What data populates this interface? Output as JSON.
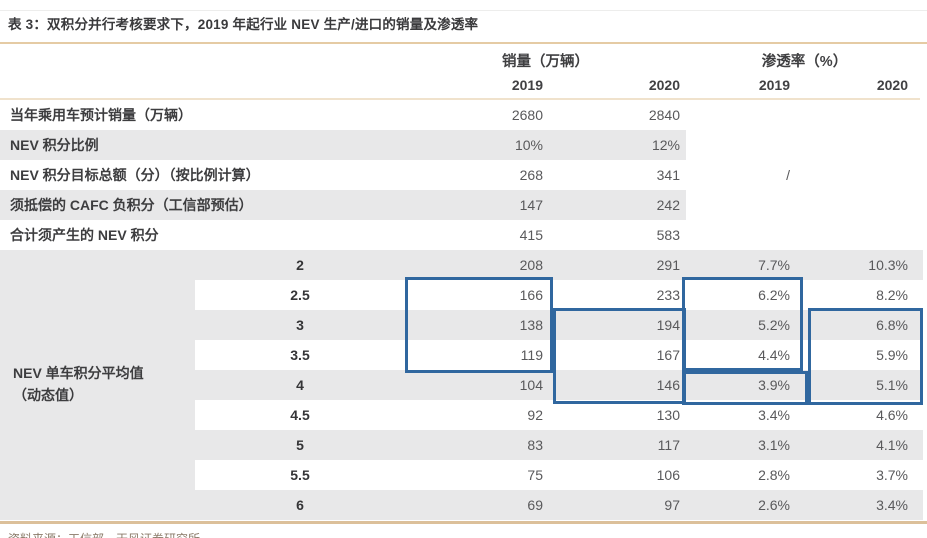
{
  "title": "表 3：双积分并行考核要求下，2019 年起行业 NEV 生产/进口的销量及渗透率",
  "header": {
    "sales_group": "销量（万辆）",
    "penetration_group": "渗透率（%）",
    "year_sales_1": "2019",
    "year_sales_2": "2020",
    "year_pen_1": "2019",
    "year_pen_2": "2020"
  },
  "summary_rows": [
    {
      "label": "当年乘用车预计销量（万辆）",
      "sales_2019": "2680",
      "sales_2020": "2840",
      "pen_2019": "",
      "pen_2020": ""
    },
    {
      "label": "NEV 积分比例",
      "sales_2019": "10%",
      "sales_2020": "12%",
      "pen_2019": "",
      "pen_2020": ""
    },
    {
      "label": "NEV 积分目标总额（分）（按比例计算）",
      "sales_2019": "268",
      "sales_2020": "341",
      "pen_2019": "/",
      "pen_2020": ""
    },
    {
      "label": "须抵偿的 CAFC 负积分（工信部预估）",
      "sales_2019": "147",
      "sales_2020": "242",
      "pen_2019": "",
      "pen_2020": ""
    },
    {
      "label": "合计须产生的 NEV 积分",
      "sales_2019": "415",
      "sales_2020": "583",
      "pen_2019": "",
      "pen_2020": ""
    }
  ],
  "matrix": {
    "group_label_line1": "NEV 单车积分平均值",
    "group_label_line2": "（动态值）",
    "rows": [
      {
        "score": "2",
        "sales_2019": "208",
        "sales_2020": "291",
        "pen_2019": "7.7%",
        "pen_2020": "10.3%"
      },
      {
        "score": "2.5",
        "sales_2019": "166",
        "sales_2020": "233",
        "pen_2019": "6.2%",
        "pen_2020": "8.2%"
      },
      {
        "score": "3",
        "sales_2019": "138",
        "sales_2020": "194",
        "pen_2019": "5.2%",
        "pen_2020": "6.8%"
      },
      {
        "score": "3.5",
        "sales_2019": "119",
        "sales_2020": "167",
        "pen_2019": "4.4%",
        "pen_2020": "5.9%"
      },
      {
        "score": "4",
        "sales_2019": "104",
        "sales_2020": "146",
        "pen_2019": "3.9%",
        "pen_2020": "5.1%"
      },
      {
        "score": "4.5",
        "sales_2019": "92",
        "sales_2020": "130",
        "pen_2019": "3.4%",
        "pen_2020": "4.6%"
      },
      {
        "score": "5",
        "sales_2019": "83",
        "sales_2020": "117",
        "pen_2019": "3.1%",
        "pen_2020": "4.1%"
      },
      {
        "score": "5.5",
        "sales_2019": "75",
        "sales_2020": "106",
        "pen_2019": "2.8%",
        "pen_2020": "3.7%"
      },
      {
        "score": "6",
        "sales_2019": "69",
        "sales_2020": "97",
        "pen_2019": "2.6%",
        "pen_2020": "3.4%"
      }
    ]
  },
  "footer": {
    "source": "资料来源：工信部，天风证券研究所"
  },
  "colors": {
    "highlight_box": "#30679f",
    "stripe_gray": "#e8e8e9",
    "rule_tan": "#e5cba4",
    "rule_bottom": "#dcc09a"
  }
}
